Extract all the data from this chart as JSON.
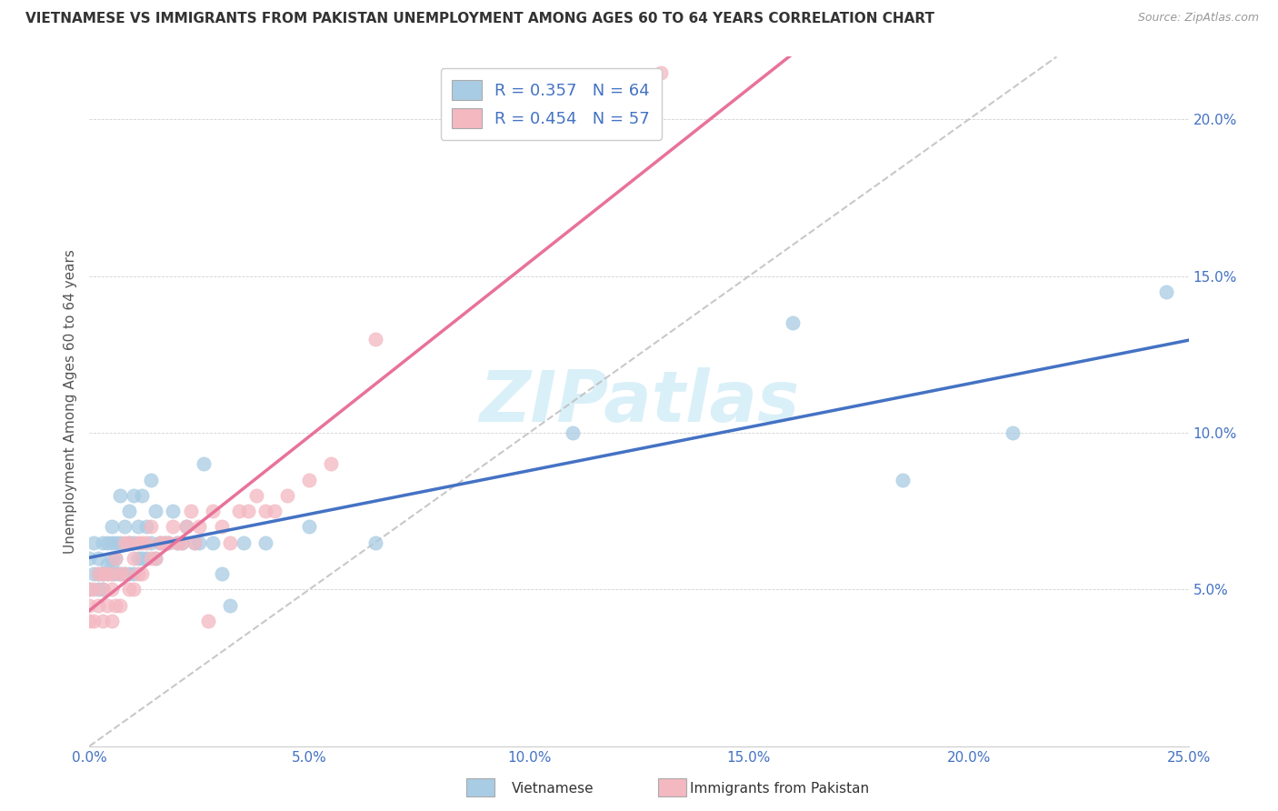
{
  "title": "VIETNAMESE VS IMMIGRANTS FROM PAKISTAN UNEMPLOYMENT AMONG AGES 60 TO 64 YEARS CORRELATION CHART",
  "source": "Source: ZipAtlas.com",
  "ylabel": "Unemployment Among Ages 60 to 64 years",
  "xlim": [
    0.0,
    0.25
  ],
  "ylim": [
    0.0,
    0.22
  ],
  "xticks": [
    0.0,
    0.05,
    0.1,
    0.15,
    0.2,
    0.25
  ],
  "yticks": [
    0.05,
    0.1,
    0.15,
    0.2
  ],
  "xtick_labels": [
    "0.0%",
    "5.0%",
    "10.0%",
    "15.0%",
    "20.0%",
    "25.0%"
  ],
  "ytick_labels": [
    "5.0%",
    "10.0%",
    "15.0%",
    "20.0%"
  ],
  "R_vietnamese": 0.357,
  "N_vietnamese": 64,
  "R_pakistan": 0.454,
  "N_pakistan": 57,
  "blue_color": "#a8cce4",
  "pink_color": "#f4b8c1",
  "blue_line_color": "#4472c4",
  "pink_line_color": "#e8729a",
  "diagonal_color": "#bbbbbb",
  "watermark": "ZIPatlas",
  "vietnamese_x": [
    0.0,
    0.0,
    0.001,
    0.001,
    0.002,
    0.002,
    0.002,
    0.003,
    0.003,
    0.003,
    0.004,
    0.004,
    0.004,
    0.005,
    0.005,
    0.005,
    0.005,
    0.005,
    0.006,
    0.006,
    0.006,
    0.007,
    0.007,
    0.007,
    0.008,
    0.008,
    0.009,
    0.009,
    0.009,
    0.01,
    0.01,
    0.01,
    0.011,
    0.011,
    0.012,
    0.012,
    0.013,
    0.013,
    0.014,
    0.014,
    0.015,
    0.015,
    0.016,
    0.017,
    0.018,
    0.019,
    0.02,
    0.021,
    0.022,
    0.024,
    0.025,
    0.026,
    0.028,
    0.03,
    0.032,
    0.035,
    0.04,
    0.05,
    0.065,
    0.11,
    0.16,
    0.185,
    0.21,
    0.245
  ],
  "vietnamese_y": [
    0.05,
    0.06,
    0.055,
    0.065,
    0.05,
    0.055,
    0.06,
    0.05,
    0.055,
    0.065,
    0.055,
    0.058,
    0.065,
    0.055,
    0.058,
    0.06,
    0.065,
    0.07,
    0.055,
    0.06,
    0.065,
    0.055,
    0.065,
    0.08,
    0.055,
    0.07,
    0.055,
    0.065,
    0.075,
    0.055,
    0.065,
    0.08,
    0.06,
    0.07,
    0.06,
    0.08,
    0.06,
    0.07,
    0.065,
    0.085,
    0.06,
    0.075,
    0.065,
    0.065,
    0.065,
    0.075,
    0.065,
    0.065,
    0.07,
    0.065,
    0.065,
    0.09,
    0.065,
    0.055,
    0.045,
    0.065,
    0.065,
    0.07,
    0.065,
    0.1,
    0.135,
    0.085,
    0.1,
    0.145
  ],
  "pakistan_x": [
    0.0,
    0.0,
    0.0,
    0.001,
    0.001,
    0.002,
    0.002,
    0.003,
    0.003,
    0.003,
    0.004,
    0.004,
    0.005,
    0.005,
    0.005,
    0.006,
    0.006,
    0.007,
    0.007,
    0.008,
    0.008,
    0.009,
    0.009,
    0.01,
    0.01,
    0.011,
    0.011,
    0.012,
    0.012,
    0.013,
    0.014,
    0.014,
    0.015,
    0.016,
    0.017,
    0.018,
    0.019,
    0.02,
    0.021,
    0.022,
    0.023,
    0.024,
    0.025,
    0.027,
    0.028,
    0.03,
    0.032,
    0.034,
    0.036,
    0.038,
    0.04,
    0.042,
    0.045,
    0.05,
    0.055,
    0.065,
    0.13
  ],
  "pakistan_y": [
    0.04,
    0.045,
    0.05,
    0.04,
    0.05,
    0.045,
    0.055,
    0.04,
    0.05,
    0.055,
    0.045,
    0.055,
    0.04,
    0.05,
    0.055,
    0.045,
    0.06,
    0.045,
    0.055,
    0.055,
    0.065,
    0.05,
    0.065,
    0.05,
    0.06,
    0.055,
    0.065,
    0.055,
    0.065,
    0.065,
    0.06,
    0.07,
    0.06,
    0.065,
    0.065,
    0.065,
    0.07,
    0.065,
    0.065,
    0.07,
    0.075,
    0.065,
    0.07,
    0.04,
    0.075,
    0.07,
    0.065,
    0.075,
    0.075,
    0.08,
    0.075,
    0.075,
    0.08,
    0.085,
    0.09,
    0.13,
    0.215
  ]
}
